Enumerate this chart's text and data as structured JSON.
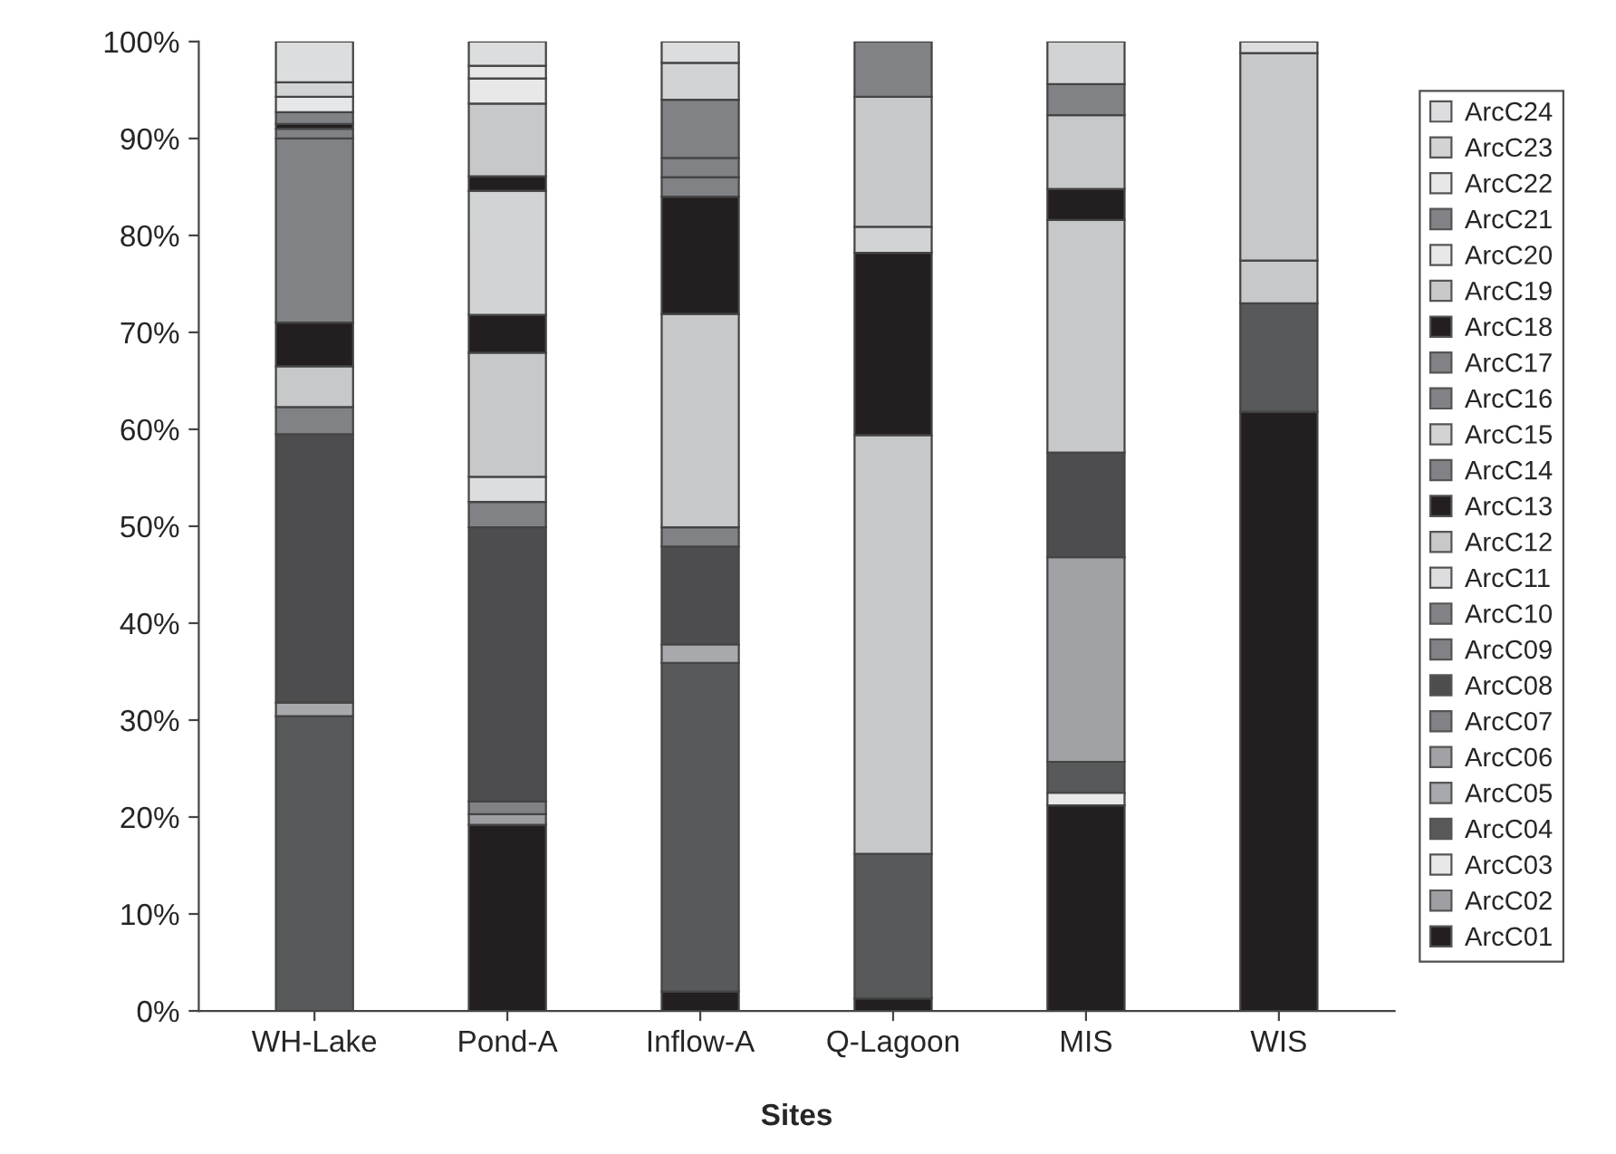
{
  "chart_data": {
    "type": "bar",
    "stacked": true,
    "xlabel": "Sites",
    "categories": [
      "WH-Lake",
      "Pond-A",
      "Inflow-A",
      "Q-Lagoon",
      "MIS",
      "WIS"
    ],
    "ylim": [
      0,
      100
    ],
    "yticks": [
      {
        "value": 0,
        "label": "0%"
      },
      {
        "value": 10,
        "label": "10%"
      },
      {
        "value": 20,
        "label": "20%"
      },
      {
        "value": 30,
        "label": "30%"
      },
      {
        "value": 40,
        "label": "40%"
      },
      {
        "value": 50,
        "label": "50%"
      },
      {
        "value": 60,
        "label": "60%"
      },
      {
        "value": 70,
        "label": "70%"
      },
      {
        "value": 80,
        "label": "80%"
      },
      {
        "value": 90,
        "label": "90%"
      },
      {
        "value": 100,
        "label": "100%"
      }
    ],
    "grid": false,
    "legend": "right",
    "series": [
      {
        "name": "ArcC01",
        "color": "#231f20",
        "values": [
          null,
          19.2,
          2.0,
          1.3,
          21.2,
          61.8
        ]
      },
      {
        "name": "ArcC02",
        "color": "#9d9fa2",
        "values": [
          null,
          1.1,
          null,
          null,
          null,
          null
        ]
      },
      {
        "name": "ArcC03",
        "color": "#e8e8e8",
        "values": [
          null,
          null,
          null,
          null,
          1.3,
          null
        ]
      },
      {
        "name": "ArcC04",
        "color": "#58595b",
        "values": [
          30.4,
          null,
          33.9,
          14.9,
          3.2,
          11.2
        ]
      },
      {
        "name": "ArcC05",
        "color": "#a7a9ac",
        "values": [
          1.4,
          null,
          1.9,
          null,
          null,
          null
        ]
      },
      {
        "name": "ArcC06",
        "color": "#a0a2a5",
        "values": [
          null,
          null,
          null,
          null,
          21.1,
          null
        ]
      },
      {
        "name": "ArcC07",
        "color": "#808285",
        "values": [
          null,
          1.3,
          null,
          null,
          null,
          null
        ]
      },
      {
        "name": "ArcC08",
        "color": "#4d4d4f",
        "values": [
          27.7,
          28.3,
          10.1,
          null,
          10.8,
          null
        ]
      },
      {
        "name": "ArcC09",
        "color": "#808285",
        "values": [
          null,
          null,
          null,
          null,
          null,
          null
        ]
      },
      {
        "name": "ArcC10",
        "color": "#808285",
        "values": [
          2.8,
          2.6,
          2.0,
          null,
          null,
          null
        ]
      },
      {
        "name": "ArcC11",
        "color": "#dcdddf",
        "values": [
          null,
          2.6,
          null,
          null,
          null,
          null
        ]
      },
      {
        "name": "ArcC12",
        "color": "#c7c8ca",
        "values": [
          4.2,
          12.8,
          22.0,
          43.2,
          24.0,
          4.4
        ]
      },
      {
        "name": "ArcC13",
        "color": "#231f20",
        "values": [
          4.5,
          3.9,
          12.1,
          18.8,
          null,
          null
        ]
      },
      {
        "name": "ArcC14",
        "color": "#808285",
        "values": [
          null,
          null,
          null,
          null,
          null,
          null
        ]
      },
      {
        "name": "ArcC15",
        "color": "#d1d3d4",
        "values": [
          null,
          12.8,
          null,
          2.7,
          null,
          null
        ]
      },
      {
        "name": "ArcC16",
        "color": "#808285",
        "values": [
          19.0,
          null,
          2.0,
          null,
          null,
          null
        ]
      },
      {
        "name": "ArcC17",
        "color": "#808285",
        "values": [
          1.0,
          null,
          2.0,
          null,
          null,
          null
        ]
      },
      {
        "name": "ArcC18",
        "color": "#231f20",
        "values": [
          0.5,
          1.5,
          null,
          null,
          3.2,
          null
        ]
      },
      {
        "name": "ArcC19",
        "color": "#c7c8ca",
        "values": [
          null,
          7.5,
          null,
          13.4,
          7.6,
          21.4
        ]
      },
      {
        "name": "ArcC20",
        "color": "#e8e8e8",
        "values": [
          null,
          2.6,
          null,
          null,
          null,
          null
        ]
      },
      {
        "name": "ArcC21",
        "color": "#808285",
        "values": [
          1.2,
          null,
          6.0,
          5.7,
          3.2,
          null
        ]
      },
      {
        "name": "ArcC22",
        "color": "#e6e7e8",
        "values": [
          1.6,
          1.3,
          null,
          null,
          null,
          null
        ]
      },
      {
        "name": "ArcC23",
        "color": "#d1d3d4",
        "values": [
          1.5,
          null,
          3.8,
          null,
          4.4,
          null
        ]
      },
      {
        "name": "ArcC24",
        "color": "#dcdddf",
        "values": [
          4.2,
          2.5,
          2.2,
          null,
          null,
          1.2
        ]
      }
    ]
  }
}
